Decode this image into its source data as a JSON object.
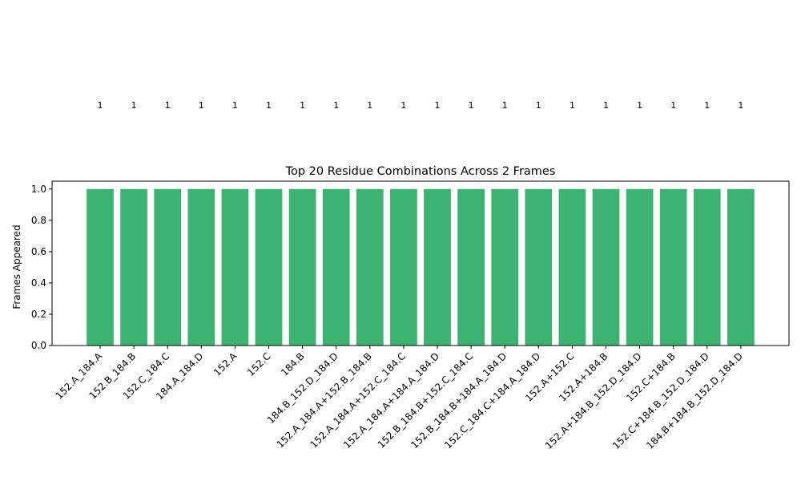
{
  "chart_data": {
    "type": "bar",
    "title": "Top 20 Residue Combinations Across 2 Frames",
    "xlabel": "",
    "ylabel": "Frames Appeared",
    "ylim": [
      0,
      1.05
    ],
    "yticks": [
      "0.0",
      "0.2",
      "0.4",
      "0.6",
      "0.8",
      "1.0"
    ],
    "grid": false,
    "bar_color": "#3cb371",
    "categories": [
      "152.A_184.A",
      "152.B_184.B",
      "152.C_184.C",
      "184.A_184.D",
      "152.A",
      "152.C",
      "184.B",
      "184.B_152.D_184.D",
      "152.A_184.A+152.B_184.B",
      "152.A_184.A+152.C_184.C",
      "152.A_184.A+184.A_184.D",
      "152.B_184.B+152.C_184.C",
      "152.B_184.B+184.A_184.D",
      "152.C_184.C+184.A_184.D",
      "152.A+152.C",
      "152.A+184.B",
      "152.A+184.B_152.D_184.D",
      "152.C+184.B",
      "152.C+184.B_152.D_184.D",
      "184.B+184.B_152.D_184.D"
    ],
    "values": [
      1,
      1,
      1,
      1,
      1,
      1,
      1,
      1,
      1,
      1,
      1,
      1,
      1,
      1,
      1,
      1,
      1,
      1,
      1,
      1
    ],
    "data_labels": [
      "1",
      "1",
      "1",
      "1",
      "1",
      "1",
      "1",
      "1",
      "1",
      "1",
      "1",
      "1",
      "1",
      "1",
      "1",
      "1",
      "1",
      "1",
      "1",
      "1"
    ]
  }
}
